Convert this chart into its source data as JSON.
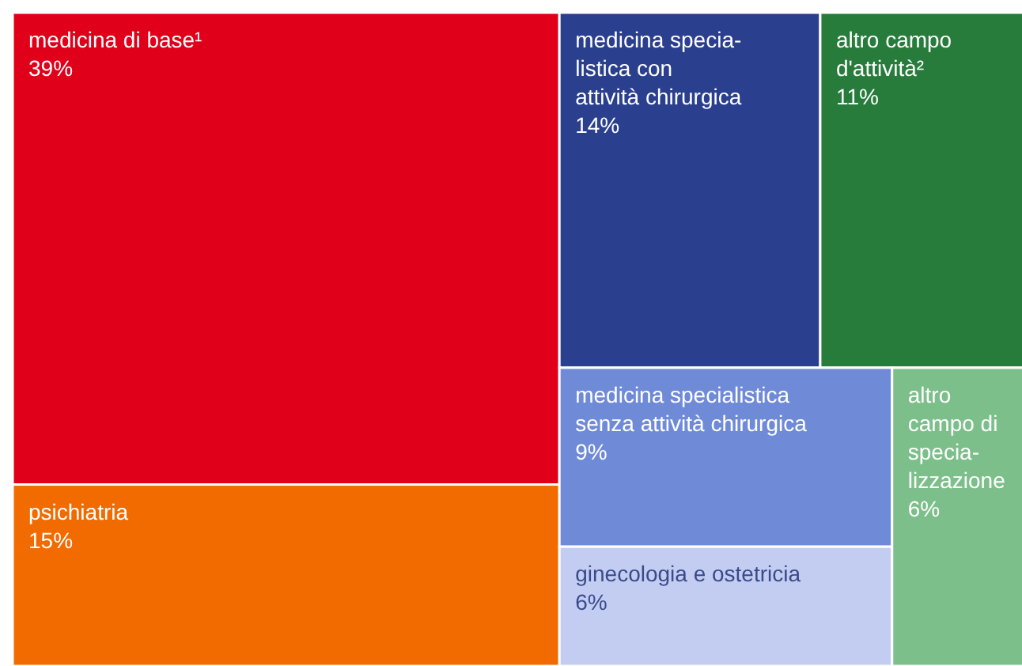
{
  "chart_data": {
    "type": "other",
    "categories": [
      "medicina di base¹",
      "psichiatria",
      "medicina specia-\nlistica con\nattività chirurgica",
      "altro campo\nd'attività²",
      "medicina specialistica\nsenza attività chirurgica",
      "ginecologia e ostetricia",
      "altro\ncampo di\nspecia-\nlizzazione"
    ],
    "values": [
      39,
      15,
      14,
      11,
      9,
      6,
      6
    ],
    "value_labels": [
      "39%",
      "15%",
      "14%",
      "11%",
      "9%",
      "6%",
      "6%"
    ],
    "colors": [
      "#e1001a",
      "#f26b00",
      "#2b3f8f",
      "#277c3b",
      "#6f8bd8",
      "#c3cdf2",
      "#7dbf8a"
    ]
  }
}
